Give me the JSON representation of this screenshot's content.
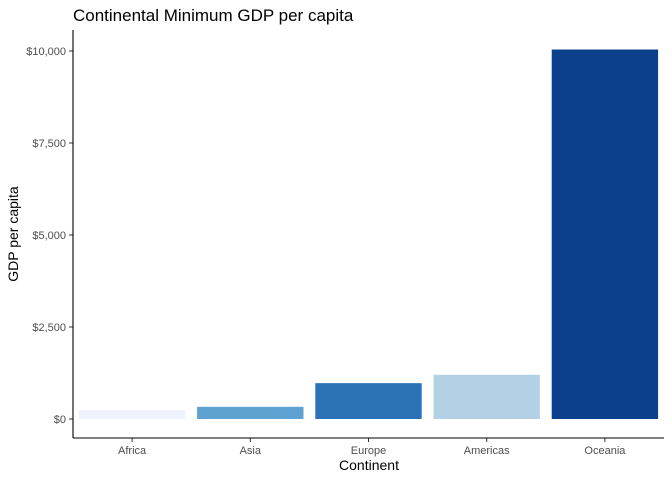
{
  "chart_data": {
    "type": "bar",
    "title": "Continental Minimum GDP per capita",
    "xlabel": "Continent",
    "ylabel": "GDP per capita",
    "categories": [
      "Africa",
      "Asia",
      "Europe",
      "Americas",
      "Oceania"
    ],
    "values": [
      241,
      331,
      974,
      1202,
      10040
    ],
    "colors": [
      "#eff3ff",
      "#5da2d1",
      "#2b71b5",
      "#b3d1e5",
      "#0d408c"
    ],
    "ylim": [
      0,
      10500
    ],
    "yticks": [
      0,
      2500,
      5000,
      7500,
      10000
    ],
    "ytick_labels": [
      "$0",
      "$2,500",
      "$5,000",
      "$7,500",
      "$10,000"
    ],
    "grid": false,
    "legend": "none"
  }
}
